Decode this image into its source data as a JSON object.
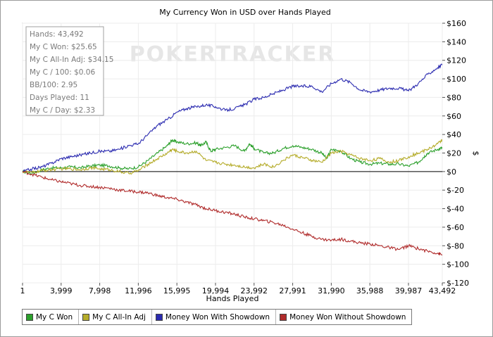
{
  "chart_data": {
    "type": "line",
    "title": "My Currency Won in USD over Hands Played",
    "xlabel": "Hands Played",
    "ylabel": "$",
    "watermark": "POKERTRACKER",
    "xlim": [
      1,
      43492
    ],
    "ylim": [
      -120,
      160
    ],
    "x_ticks": [
      1,
      3999,
      7998,
      11996,
      15995,
      19994,
      23992,
      27991,
      31990,
      35988,
      39987,
      43492
    ],
    "x_tick_labels": [
      "1",
      "3,999",
      "7,998",
      "11,996",
      "15,995",
      "19,994",
      "23,992",
      "27,991",
      "31,990",
      "35,988",
      "39,987",
      "43,492"
    ],
    "y_ticks": [
      160,
      140,
      120,
      100,
      80,
      60,
      40,
      20,
      0,
      -20,
      -40,
      -60,
      -80,
      -100,
      -120
    ],
    "y_tick_labels": [
      "$160",
      "$140",
      "$120",
      "$100",
      "$80",
      "$60",
      "$40",
      "$20",
      "$0",
      "$-20",
      "$-40",
      "$-60",
      "$-80",
      "$-100",
      "$-120"
    ],
    "stats": [
      "Hands: 43,492",
      "My C Won: $25.65",
      "My C All-In Adj: $34.15",
      "My C / 100: $0.06",
      "BB/100: 2.95",
      "Days Played: 11",
      "My C / Day: $2.33"
    ],
    "series": [
      {
        "name": "My C Won",
        "color": "#2ca02c",
        "x": [
          1,
          1000,
          2000,
          3000,
          4000,
          5000,
          6000,
          7000,
          8000,
          9000,
          10000,
          11000,
          12000,
          13000,
          14000,
          15000,
          15500,
          16000,
          17000,
          18000,
          18500,
          19000,
          19500,
          20000,
          21000,
          22000,
          23000,
          23500,
          24000,
          25000,
          26000,
          27000,
          28000,
          29000,
          30000,
          31000,
          31500,
          32000,
          33000,
          34000,
          35000,
          36000,
          37000,
          38000,
          39000,
          40000,
          41000,
          41500,
          42000,
          43000,
          43492
        ],
        "values": [
          0,
          -2,
          2,
          4,
          4,
          5,
          4,
          6,
          7,
          6,
          4,
          3,
          5,
          12,
          20,
          28,
          34,
          32,
          30,
          31,
          28,
          32,
          22,
          24,
          26,
          28,
          22,
          30,
          25,
          20,
          20,
          25,
          28,
          26,
          24,
          20,
          14,
          24,
          22,
          14,
          10,
          8,
          9,
          8,
          8,
          6,
          10,
          15,
          20,
          24,
          25.65
        ]
      },
      {
        "name": "My C All-In Adj",
        "color": "#b5ac2a",
        "x": [
          1,
          1000,
          2000,
          3000,
          4000,
          5000,
          6000,
          7000,
          8000,
          9000,
          10000,
          11000,
          12000,
          13000,
          14000,
          15000,
          15500,
          16000,
          17000,
          18000,
          19000,
          20000,
          21000,
          22000,
          23000,
          24000,
          25000,
          26000,
          27000,
          28000,
          29000,
          30000,
          31000,
          32000,
          33000,
          34000,
          35000,
          36000,
          37000,
          38000,
          39000,
          40000,
          41000,
          42000,
          43000,
          43492
        ],
        "values": [
          0,
          -1,
          1,
          2,
          3,
          3,
          2,
          4,
          3,
          2,
          0,
          -2,
          1,
          8,
          14,
          20,
          24,
          22,
          20,
          22,
          12,
          10,
          8,
          7,
          5,
          4,
          8,
          5,
          12,
          18,
          15,
          12,
          10,
          20,
          22,
          18,
          14,
          12,
          14,
          10,
          12,
          16,
          20,
          24,
          30,
          34.15
        ]
      },
      {
        "name": "Money Won With Showdown",
        "color": "#2b2bb0",
        "x": [
          1,
          1000,
          2000,
          3000,
          4000,
          5000,
          6000,
          7000,
          8000,
          9000,
          10000,
          11000,
          12000,
          13000,
          14000,
          15000,
          16000,
          17000,
          18000,
          19000,
          20000,
          21000,
          22000,
          23000,
          24000,
          25000,
          26000,
          27000,
          28000,
          29000,
          30000,
          31000,
          32000,
          33000,
          34000,
          35000,
          36000,
          37000,
          38000,
          39000,
          40000,
          41000,
          42000,
          43000,
          43492
        ],
        "values": [
          0,
          3,
          5,
          9,
          14,
          16,
          18,
          20,
          22,
          22,
          24,
          28,
          30,
          40,
          50,
          56,
          64,
          68,
          70,
          72,
          70,
          66,
          68,
          72,
          78,
          80,
          84,
          88,
          92,
          92,
          92,
          86,
          95,
          100,
          96,
          88,
          86,
          88,
          90,
          90,
          87,
          95,
          105,
          112,
          115
        ]
      },
      {
        "name": "Money Won Without Showdown",
        "color": "#b02b2b",
        "x": [
          1,
          1000,
          2000,
          3000,
          4000,
          5000,
          6000,
          7000,
          8000,
          9000,
          10000,
          11000,
          12000,
          13000,
          14000,
          15000,
          16000,
          17000,
          18000,
          19000,
          20000,
          21000,
          22000,
          23000,
          24000,
          25000,
          26000,
          27000,
          28000,
          29000,
          30000,
          31000,
          32000,
          33000,
          34000,
          35000,
          36000,
          37000,
          38000,
          39000,
          40000,
          41000,
          42000,
          43000,
          43492
        ],
        "values": [
          0,
          -3,
          -6,
          -9,
          -11,
          -13,
          -15,
          -16,
          -17,
          -18,
          -20,
          -21,
          -22,
          -23,
          -26,
          -28,
          -30,
          -33,
          -36,
          -40,
          -42,
          -44,
          -46,
          -49,
          -51,
          -53,
          -55,
          -58,
          -62,
          -66,
          -70,
          -73,
          -74,
          -73,
          -75,
          -77,
          -78,
          -80,
          -82,
          -84,
          -80,
          -83,
          -86,
          -88,
          -90
        ]
      }
    ]
  }
}
